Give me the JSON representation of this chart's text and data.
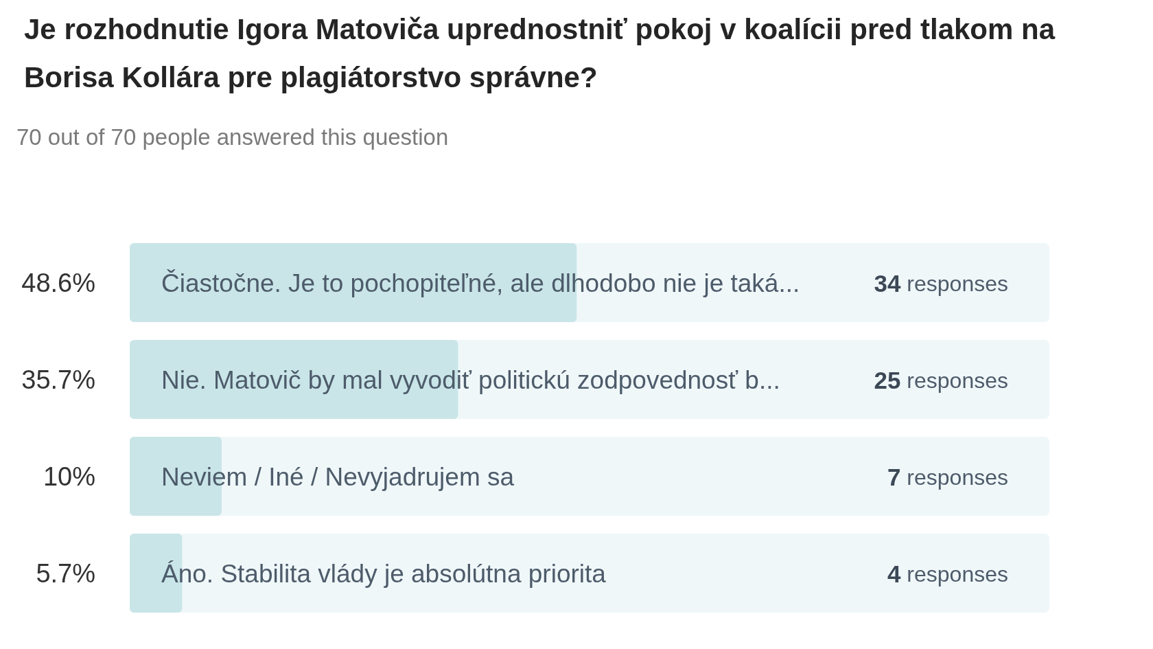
{
  "chart_data": {
    "type": "bar",
    "orientation": "horizontal",
    "title": "Je rozhodnutie Igora Matoviča uprednostniť pokoj v koalícii pred tlakom na Borisa Kollára pre plagiátorstvo správne?",
    "subtitle": "70 out of 70 people answered this question",
    "categories": [
      "Čiastočne. Je to pochopiteľné, ale dlhodobo nie je taká...",
      "Nie. Matovič by mal vyvodiť politickú zodpovednosť b...",
      "Neviem / Iné / Nevyjadrujem sa",
      "Áno. Stabilita vlády je absolútna priorita"
    ],
    "values": [
      48.6,
      35.7,
      10,
      5.7
    ],
    "value_labels": [
      "48.6%",
      "35.7%",
      "10%",
      "5.7%"
    ],
    "color": "#c9e5e8",
    "xlim": [
      0,
      100
    ],
    "tick_labels": false,
    "annotations": [
      "34 responses",
      "25 responses",
      "7 responses",
      "4 responses"
    ]
  }
}
